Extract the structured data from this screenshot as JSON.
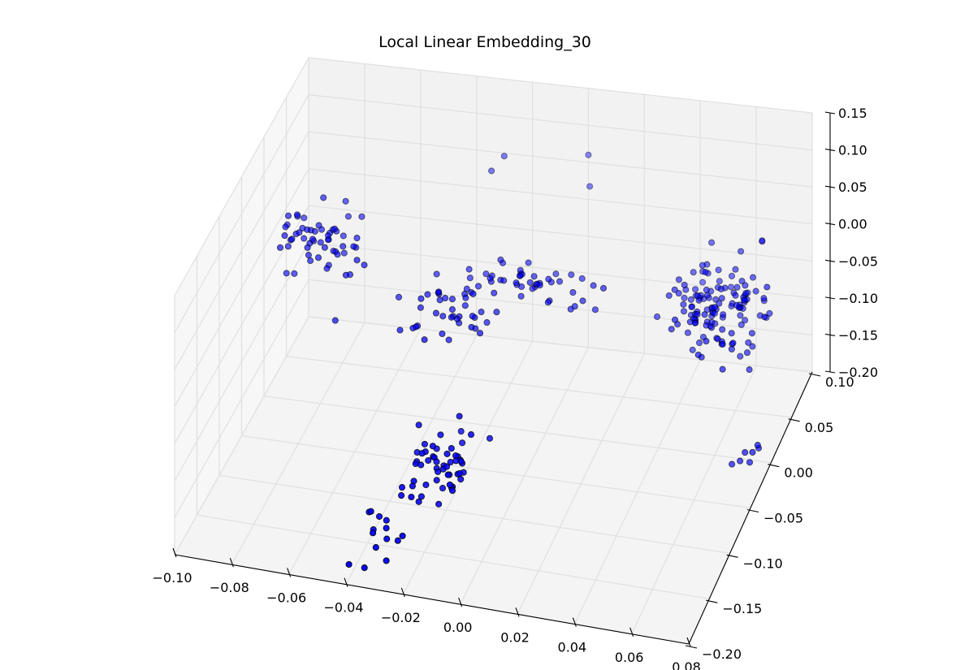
{
  "chart_data": {
    "type": "scatter",
    "projection": "3d",
    "title": "Local Linear Embedding_30",
    "grid": true,
    "legend": "none",
    "marker_color": "#0000ff",
    "marker_edge_color": "#000000",
    "pane_color": "#f2f2f2",
    "axes": {
      "x": {
        "range": [
          -0.1,
          0.08
        ],
        "ticks": [
          -0.1,
          -0.08,
          -0.06,
          -0.04,
          -0.02,
          0.0,
          0.02,
          0.04,
          0.06,
          0.08
        ],
        "tick_labels": [
          "−0.10",
          "−0.08",
          "−0.06",
          "−0.04",
          "−0.02",
          "0.00",
          "0.02",
          "0.04",
          "0.06",
          "0.08"
        ]
      },
      "y": {
        "range": [
          -0.2,
          0.1
        ],
        "ticks": [
          -0.2,
          -0.15,
          -0.1,
          -0.05,
          0.0,
          0.05,
          0.1
        ],
        "tick_labels": [
          "−0.20",
          "−0.15",
          "−0.10",
          "−0.05",
          "0.00",
          "0.05",
          "0.10"
        ]
      },
      "z": {
        "range": [
          -0.2,
          0.15
        ],
        "ticks": [
          -0.2,
          -0.15,
          -0.1,
          -0.05,
          0.0,
          0.05,
          0.1,
          0.15
        ],
        "tick_labels": [
          "−0.20",
          "−0.15",
          "−0.10",
          "−0.05",
          "0.00",
          "0.05",
          "0.10",
          "0.15"
        ]
      }
    },
    "clusters": [
      {
        "name": "",
        "center": [
          -0.08,
          0.0,
          0.02
        ],
        "spread": [
          0.008,
          0.012,
          0.015
        ],
        "count": 55
      },
      {
        "name": "",
        "center": [
          -0.03,
          -0.02,
          -0.03
        ],
        "spread": [
          0.008,
          0.01,
          0.015
        ],
        "count": 40
      },
      {
        "name": "",
        "center": [
          -0.005,
          0.02,
          -0.02
        ],
        "spread": [
          0.012,
          0.01,
          0.012
        ],
        "count": 45
      },
      {
        "name": "",
        "center": [
          0.055,
          0.03,
          -0.04
        ],
        "spread": [
          0.008,
          0.015,
          0.025
        ],
        "count": 130
      },
      {
        "name": "",
        "center": [
          -0.02,
          -0.12,
          -0.12
        ],
        "spread": [
          0.008,
          0.015,
          0.02
        ],
        "count": 55
      },
      {
        "name": "",
        "center": [
          -0.035,
          -0.17,
          -0.17
        ],
        "spread": [
          0.004,
          0.01,
          0.01
        ],
        "count": 14
      },
      {
        "name": "",
        "center": [
          0.075,
          -0.02,
          -0.17
        ],
        "spread": [
          0.003,
          0.005,
          0.008
        ],
        "count": 7
      }
    ],
    "points": [
      [
        -0.03,
        0.07,
        0.06
      ],
      [
        -0.027,
        0.08,
        0.07
      ],
      [
        0.0,
        0.1,
        0.06
      ],
      [
        0.002,
        0.09,
        0.03
      ],
      [
        0.068,
        0.06,
        0.02
      ],
      [
        0.068,
        0.06,
        0.021
      ],
      [
        0.045,
        0.05,
        -0.02
      ],
      [
        0.06,
        0.0,
        0.0
      ],
      [
        -0.092,
        0.0,
        -0.03
      ],
      [
        -0.09,
        0.005,
        -0.035
      ],
      [
        -0.07,
        -0.03,
        -0.05
      ]
    ]
  }
}
